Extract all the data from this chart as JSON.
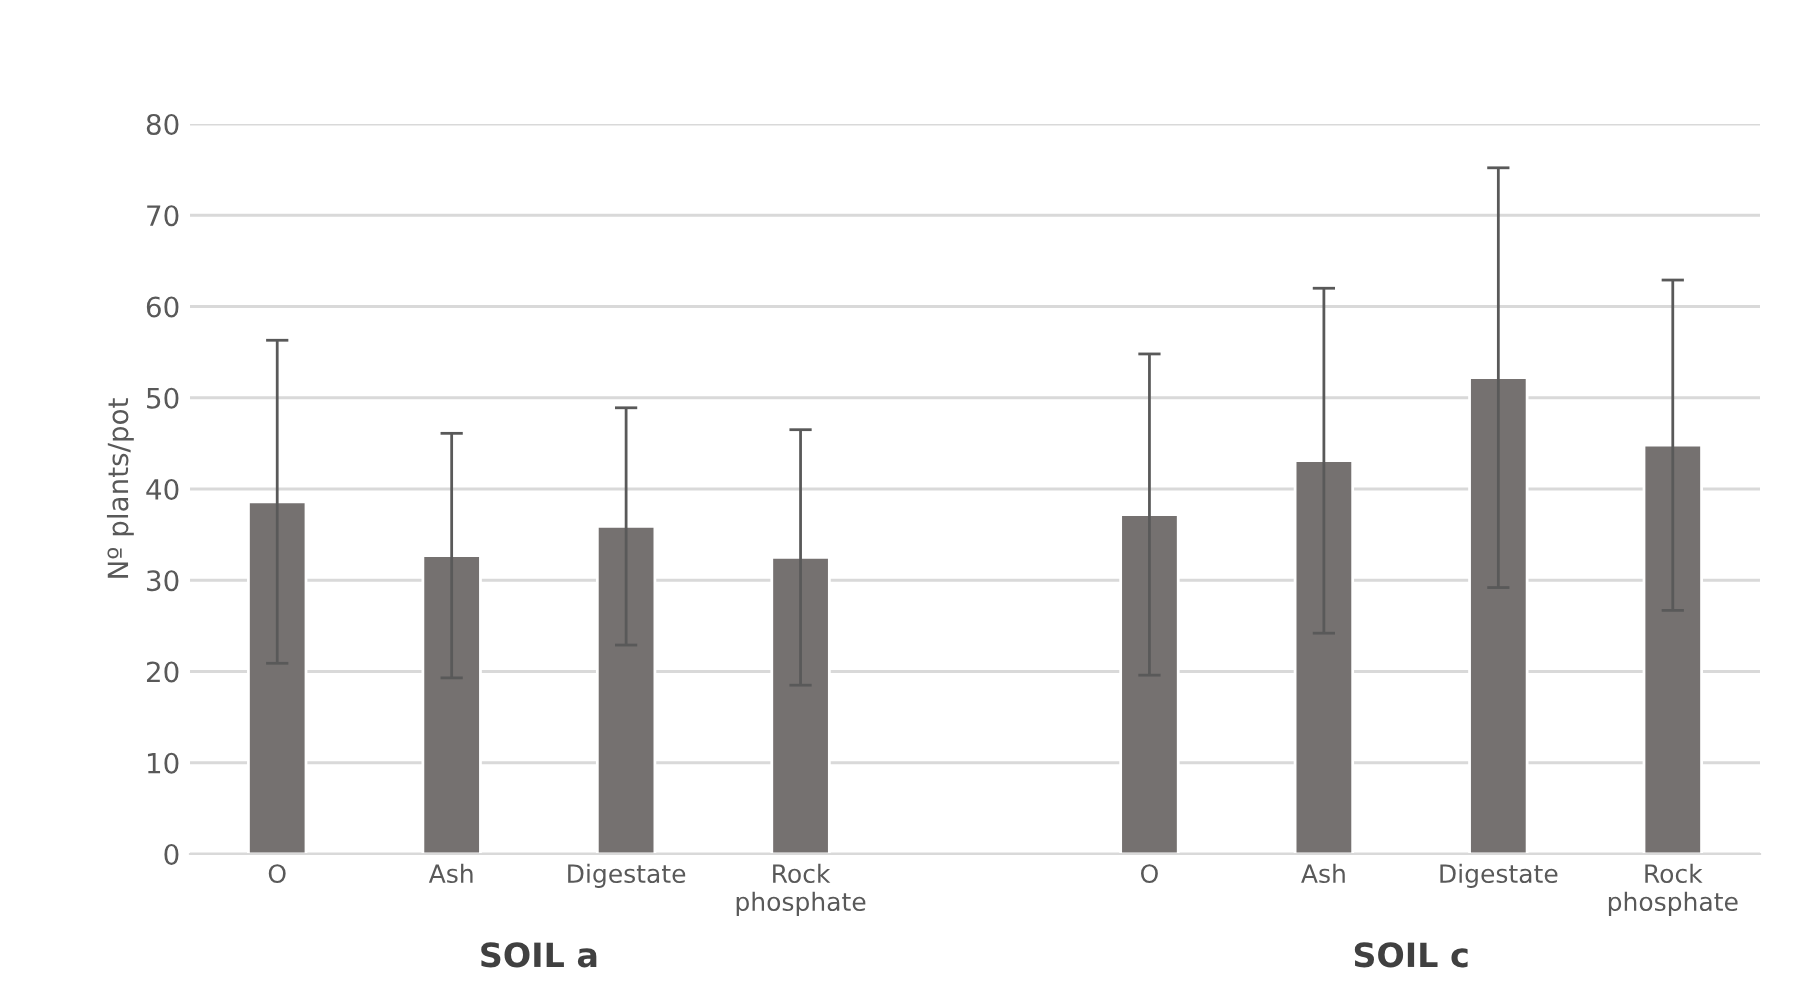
{
  "chart_data": {
    "type": "bar",
    "categories": [
      "O",
      "Ash",
      "Digestate",
      "Rock\nphosphate",
      null,
      "O",
      "Ash",
      "Digestate",
      "Rock\nphosphate"
    ],
    "values": [
      38.6,
      32.7,
      35.9,
      32.5,
      null,
      37.2,
      43.1,
      52.2,
      44.8
    ],
    "errors": [
      17.7,
      13.4,
      13.0,
      14.0,
      null,
      17.6,
      18.9,
      23.0,
      18.1
    ],
    "color": "#757170",
    "ylabel": "Nº plants/pot",
    "ylim": [
      0,
      80
    ],
    "yticks": [
      0,
      10,
      20,
      30,
      40,
      50,
      60,
      70,
      80
    ],
    "grid": "y",
    "annotations": [
      "SOIL a",
      "SOIL c"
    ]
  }
}
